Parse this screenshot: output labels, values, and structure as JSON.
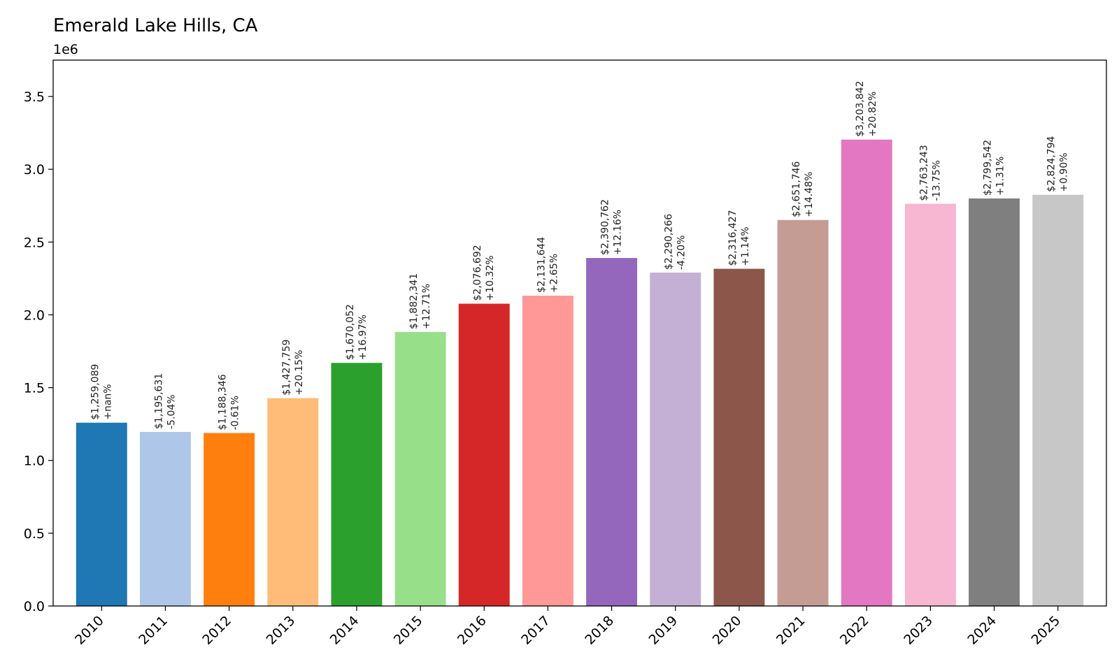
{
  "chart_data": {
    "type": "bar",
    "title": "Emerald Lake Hills, CA",
    "y_offset_label": "1e6",
    "xlabel": "",
    "ylabel": "",
    "ylim": [
      0,
      3750000
    ],
    "yticks": [
      0,
      500000,
      1000000,
      1500000,
      2000000,
      2500000,
      3000000,
      3500000
    ],
    "ytick_labels": [
      "0.0",
      "0.5",
      "1.0",
      "1.5",
      "2.0",
      "2.5",
      "3.0",
      "3.5"
    ],
    "grid": false,
    "legend": "none",
    "categories": [
      "2010",
      "2011",
      "2012",
      "2013",
      "2014",
      "2015",
      "2016",
      "2017",
      "2018",
      "2019",
      "2020",
      "2021",
      "2022",
      "2023",
      "2024",
      "2025"
    ],
    "values": [
      1259089,
      1195631,
      1188346,
      1427759,
      1670052,
      1882341,
      2076692,
      2131644,
      2390762,
      2290266,
      2316427,
      2651746,
      3203842,
      2763243,
      2799542,
      2824794
    ],
    "value_labels": [
      "$1,259,089",
      "$1,195,631",
      "$1,188,346",
      "$1,427,759",
      "$1,670,052",
      "$1,882,341",
      "$2,076,692",
      "$2,131,644",
      "$2,390,762",
      "$2,290,266",
      "$2,316,427",
      "$2,651,746",
      "$3,203,842",
      "$2,763,243",
      "$2,799,542",
      "$2,824,794"
    ],
    "change_labels": [
      "+nan%",
      "-5.04%",
      "-0.61%",
      "+20.15%",
      "+16.97%",
      "+12.71%",
      "+10.32%",
      "+2.65%",
      "+12.16%",
      "-4.20%",
      "+1.14%",
      "+14.48%",
      "+20.82%",
      "-13.75%",
      "+1.31%",
      "+0.90%"
    ],
    "colors": [
      "#1f77b4",
      "#aec7e8",
      "#ff7f0e",
      "#ffbb78",
      "#2ca02c",
      "#98df8a",
      "#d62728",
      "#ff9896",
      "#9467bd",
      "#c5b0d5",
      "#8c564b",
      "#c49c94",
      "#e377c2",
      "#f7b6d2",
      "#7f7f7f",
      "#c7c7c7"
    ]
  }
}
